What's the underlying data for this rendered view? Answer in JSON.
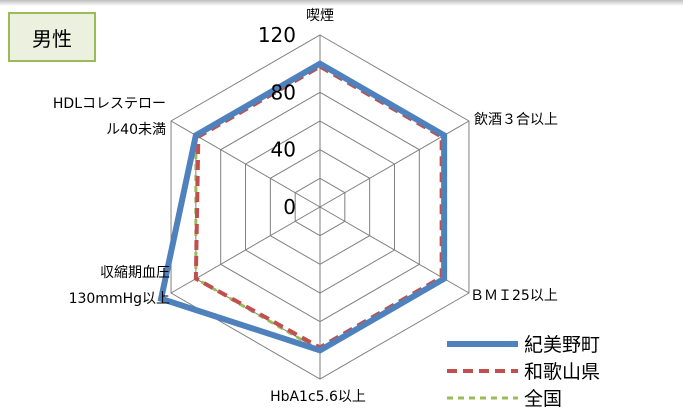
{
  "badge": {
    "label": "男性"
  },
  "colors": {
    "kimino": "#4f81bd",
    "wakayama": "#c0504d",
    "zenkoku": "#9bbb59",
    "grid": "#7f7f7f",
    "badge_bg": "#ebf1de"
  },
  "chart_data": {
    "type": "radar",
    "title": "",
    "axes": [
      {
        "lines": [
          "喫煙"
        ]
      },
      {
        "lines": [
          "飲酒３合以上"
        ]
      },
      {
        "lines": [
          "ＢＭＩ25以上"
        ]
      },
      {
        "lines": [
          "HbA1c5.6以上"
        ]
      },
      {
        "lines": [
          "収縮期血圧",
          "130mmHg以上"
        ]
      },
      {
        "lines": [
          "HDLコレステロー",
          "ル40未満"
        ]
      }
    ],
    "rlim": [
      0,
      120
    ],
    "ticks": [
      "0",
      "40",
      "80",
      "120"
    ],
    "grid": true,
    "legend_position": "bottom-right",
    "series": [
      {
        "name": "紀美野町",
        "color": "#4f81bd",
        "style": "solid",
        "values": [
          100,
          100,
          100,
          100,
          128,
          100
        ]
      },
      {
        "name": "和歌山県",
        "color": "#c0504d",
        "style": "dashed",
        "values": [
          98,
          98,
          98,
          98,
          100,
          98
        ]
      },
      {
        "name": "全国",
        "color": "#9bbb59",
        "style": "dotted",
        "values": [
          100,
          100,
          100,
          100,
          100,
          100
        ]
      }
    ]
  }
}
